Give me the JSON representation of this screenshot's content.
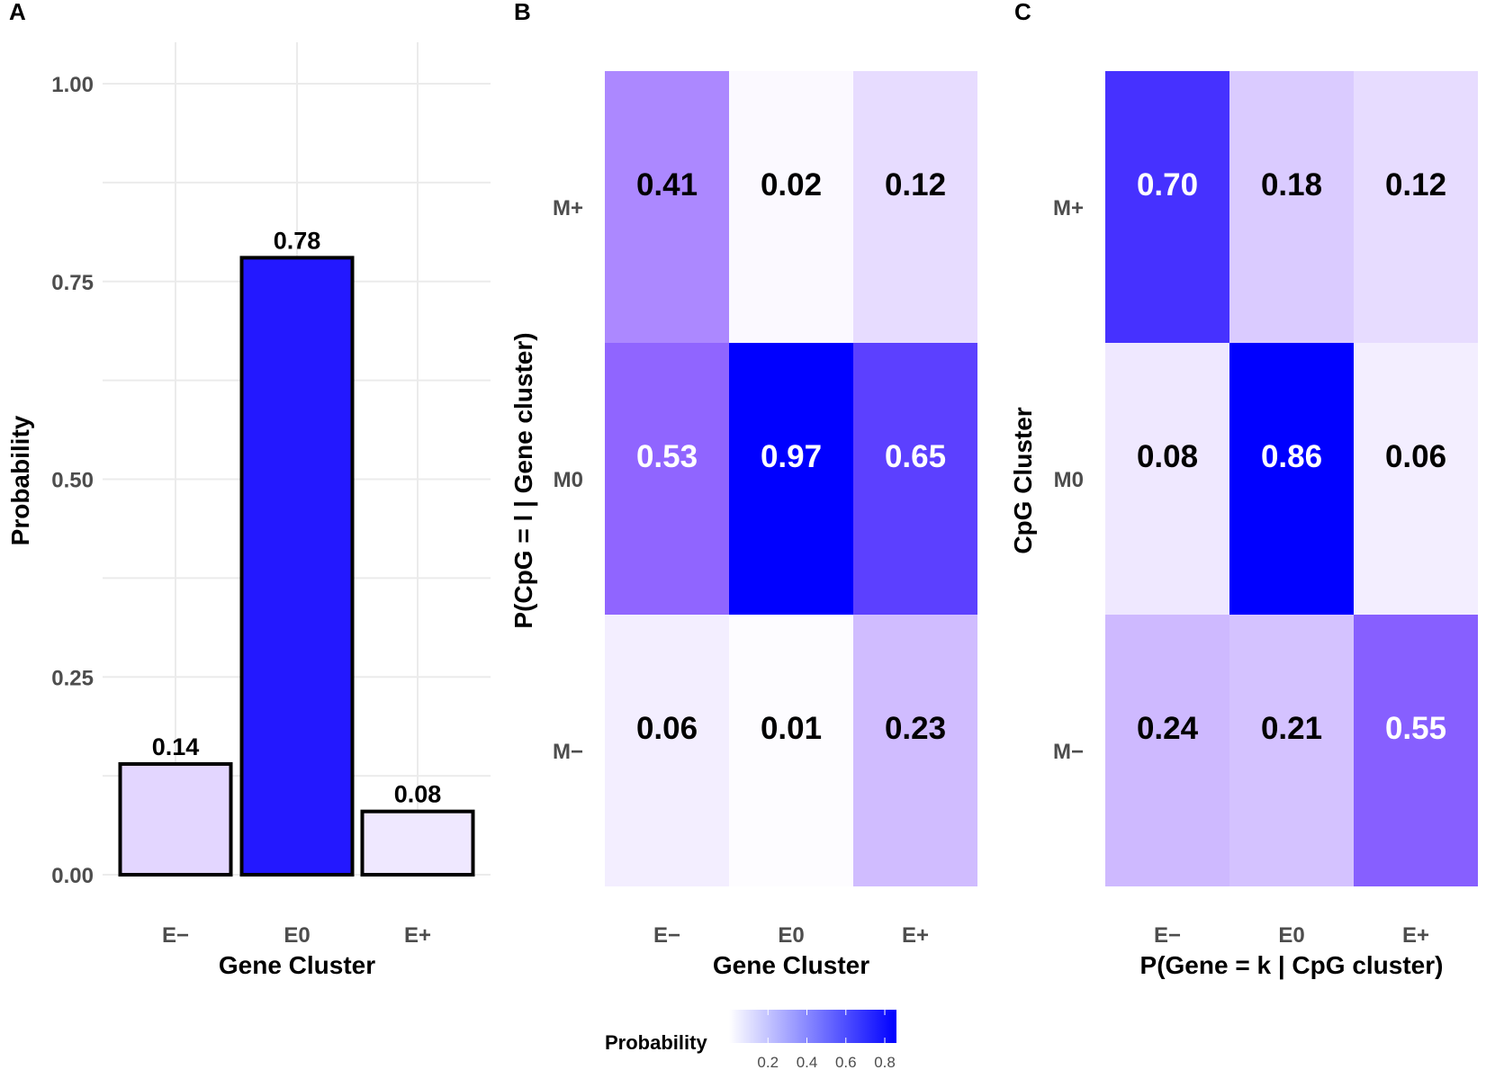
{
  "figure": {
    "panel_labels": [
      "A",
      "B",
      "C"
    ],
    "legend": {
      "title": "Probability",
      "ticks": [
        "0.2",
        "0.4",
        "0.6",
        "0.8"
      ],
      "range": [
        0.0,
        0.86
      ],
      "color_low": "#ffffff",
      "color_high": "#0000ff"
    }
  },
  "chart_data": [
    {
      "panel": "A",
      "type": "bar",
      "title": "",
      "xlabel": "Gene Cluster",
      "ylabel": "Probability",
      "categories": [
        "E−",
        "E0",
        "E+"
      ],
      "values": [
        0.14,
        0.78,
        0.08
      ],
      "value_labels": [
        "0.14",
        "0.78",
        "0.08"
      ],
      "ylim": [
        0,
        1
      ],
      "yticks": [
        0,
        0.25,
        0.5,
        0.75,
        1.0
      ],
      "ytick_labels": [
        "0.00",
        "0.25",
        "0.50",
        "0.75",
        "1.00"
      ],
      "grid": true
    },
    {
      "panel": "B",
      "type": "heatmap",
      "title": "",
      "xlabel": "Gene Cluster",
      "ylabel": "P(CpG = l | Gene cluster)",
      "x_categories": [
        "E−",
        "E0",
        "E+"
      ],
      "y_categories": [
        "M+",
        "M0",
        "M−"
      ],
      "values": [
        [
          0.41,
          0.02,
          0.12
        ],
        [
          0.53,
          0.97,
          0.65
        ],
        [
          0.06,
          0.01,
          0.23
        ]
      ],
      "value_labels": [
        [
          "0.41",
          "0.02",
          "0.12"
        ],
        [
          "0.53",
          "0.97",
          "0.65"
        ],
        [
          "0.06",
          "0.01",
          "0.23"
        ]
      ]
    },
    {
      "panel": "C",
      "type": "heatmap",
      "title": "",
      "xlabel": "P(Gene = k | CpG cluster)",
      "ylabel": "CpG Cluster",
      "x_categories": [
        "E−",
        "E0",
        "E+"
      ],
      "y_categories": [
        "M+",
        "M0",
        "M−"
      ],
      "values": [
        [
          0.7,
          0.18,
          0.12
        ],
        [
          0.08,
          0.86,
          0.06
        ],
        [
          0.24,
          0.21,
          0.55
        ]
      ],
      "value_labels": [
        [
          "0.70",
          "0.18",
          "0.12"
        ],
        [
          "0.08",
          "0.86",
          "0.06"
        ],
        [
          "0.24",
          "0.21",
          "0.55"
        ]
      ]
    }
  ]
}
